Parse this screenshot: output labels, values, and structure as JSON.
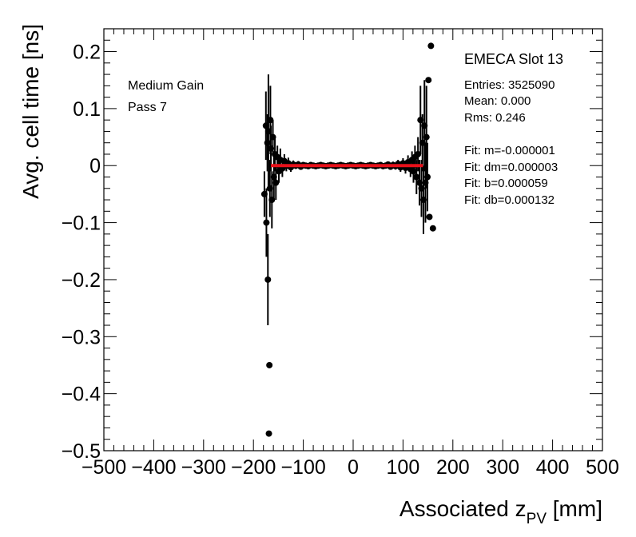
{
  "chart_data": {
    "type": "scatter",
    "xlabel_main": "Associated z",
    "xlabel_sub": "PV",
    "xlabel_unit": " [mm]",
    "ylabel": "Avg. cell time [ns]",
    "xlim": [
      -500,
      500
    ],
    "ylim": [
      -0.5,
      0.24
    ],
    "xticks": [
      -500,
      -400,
      -300,
      -200,
      -100,
      0,
      100,
      200,
      300,
      400,
      500
    ],
    "yticks": [
      0.2,
      0.1,
      0,
      -0.1,
      -0.2,
      -0.3,
      -0.4,
      -0.5
    ],
    "xtick_labels": [
      "−500",
      "−400",
      "−300",
      "−200",
      "−100",
      "0",
      "100",
      "200",
      "300",
      "400",
      "500"
    ],
    "ytick_labels": [
      "0.2",
      "0.1",
      "0",
      "−0.1",
      "−0.2",
      "−0.3",
      "−0.4",
      "−0.5"
    ],
    "grid": false,
    "annotations": [
      "Medium Gain",
      "Pass 7"
    ],
    "stats_box": {
      "title": "EMECA Slot 13",
      "lines": [
        "Entries: 3525090",
        "Mean: 0.000",
        "Rms: 0.246",
        "",
        "Fit: m=-0.000001",
        "Fit: dm=0.000003",
        "Fit: b=0.000059",
        "Fit: db=0.000132"
      ]
    },
    "fit_line": {
      "x": [
        -165,
        140
      ],
      "y": [
        0.0,
        0.0
      ],
      "color": "#e8101a"
    },
    "marker_color": "#000000",
    "points": [
      {
        "x": -178,
        "y": -0.05,
        "err": 0.04
      },
      {
        "x": -175,
        "y": 0.07,
        "err": 0.06
      },
      {
        "x": -174,
        "y": -0.1,
        "err": 0.06
      },
      {
        "x": -172,
        "y": 0.04,
        "err": 0.05
      },
      {
        "x": -171,
        "y": -0.2,
        "err": 0.08
      },
      {
        "x": -170,
        "y": 0.06,
        "err": 0.1
      },
      {
        "x": -169,
        "y": -0.47,
        "err": 0.0
      },
      {
        "x": -168,
        "y": -0.35,
        "err": 0.0
      },
      {
        "x": -167,
        "y": -0.04,
        "err": 0.05
      },
      {
        "x": -166,
        "y": 0.08,
        "err": 0.06
      },
      {
        "x": -165,
        "y": 0.03,
        "err": 0.04
      },
      {
        "x": -163,
        "y": -0.06,
        "err": 0.05
      },
      {
        "x": -161,
        "y": 0.05,
        "err": 0.03
      },
      {
        "x": -159,
        "y": -0.02,
        "err": 0.04
      },
      {
        "x": -157,
        "y": 0.02,
        "err": 0.03
      },
      {
        "x": -155,
        "y": -0.03,
        "err": 0.03
      },
      {
        "x": -152,
        "y": 0.015,
        "err": 0.02
      },
      {
        "x": -149,
        "y": -0.01,
        "err": 0.02
      },
      {
        "x": -146,
        "y": 0.01,
        "err": 0.02
      },
      {
        "x": -142,
        "y": -0.005,
        "err": 0.015
      },
      {
        "x": -138,
        "y": 0.008,
        "err": 0.012
      },
      {
        "x": -134,
        "y": 0.0,
        "err": 0.01
      },
      {
        "x": -130,
        "y": 0.004,
        "err": 0.01
      },
      {
        "x": -125,
        "y": -0.003,
        "err": 0.008
      },
      {
        "x": -120,
        "y": 0.002,
        "err": 0.007
      },
      {
        "x": -115,
        "y": 0.0,
        "err": 0.006
      },
      {
        "x": -110,
        "y": 0.002,
        "err": 0.006
      },
      {
        "x": -105,
        "y": -0.002,
        "err": 0.005
      },
      {
        "x": -100,
        "y": 0.001,
        "err": 0.005
      },
      {
        "x": -95,
        "y": 0.0,
        "err": 0.005
      },
      {
        "x": -90,
        "y": -0.001,
        "err": 0.004
      },
      {
        "x": -85,
        "y": 0.001,
        "err": 0.004
      },
      {
        "x": -80,
        "y": 0.0,
        "err": 0.004
      },
      {
        "x": -75,
        "y": -0.001,
        "err": 0.004
      },
      {
        "x": -70,
        "y": 0.0,
        "err": 0.004
      },
      {
        "x": -65,
        "y": 0.001,
        "err": 0.003
      },
      {
        "x": -60,
        "y": 0.0,
        "err": 0.003
      },
      {
        "x": -55,
        "y": -0.001,
        "err": 0.003
      },
      {
        "x": -50,
        "y": 0.0,
        "err": 0.003
      },
      {
        "x": -45,
        "y": 0.001,
        "err": 0.003
      },
      {
        "x": -40,
        "y": 0.0,
        "err": 0.003
      },
      {
        "x": -35,
        "y": -0.001,
        "err": 0.003
      },
      {
        "x": -30,
        "y": 0.0,
        "err": 0.003
      },
      {
        "x": -25,
        "y": 0.001,
        "err": 0.003
      },
      {
        "x": -20,
        "y": 0.0,
        "err": 0.003
      },
      {
        "x": -15,
        "y": -0.001,
        "err": 0.003
      },
      {
        "x": -10,
        "y": 0.0,
        "err": 0.003
      },
      {
        "x": -5,
        "y": 0.001,
        "err": 0.003
      },
      {
        "x": 0,
        "y": 0.0,
        "err": 0.003
      },
      {
        "x": 5,
        "y": -0.001,
        "err": 0.003
      },
      {
        "x": 10,
        "y": 0.0,
        "err": 0.003
      },
      {
        "x": 15,
        "y": 0.001,
        "err": 0.003
      },
      {
        "x": 20,
        "y": 0.0,
        "err": 0.003
      },
      {
        "x": 25,
        "y": -0.001,
        "err": 0.003
      },
      {
        "x": 30,
        "y": 0.0,
        "err": 0.003
      },
      {
        "x": 35,
        "y": 0.001,
        "err": 0.003
      },
      {
        "x": 40,
        "y": 0.0,
        "err": 0.003
      },
      {
        "x": 45,
        "y": -0.001,
        "err": 0.003
      },
      {
        "x": 50,
        "y": 0.0,
        "err": 0.004
      },
      {
        "x": 55,
        "y": 0.001,
        "err": 0.004
      },
      {
        "x": 60,
        "y": -0.001,
        "err": 0.004
      },
      {
        "x": 65,
        "y": 0.0,
        "err": 0.004
      },
      {
        "x": 70,
        "y": 0.002,
        "err": 0.005
      },
      {
        "x": 75,
        "y": -0.002,
        "err": 0.005
      },
      {
        "x": 80,
        "y": 0.001,
        "err": 0.006
      },
      {
        "x": 85,
        "y": -0.001,
        "err": 0.006
      },
      {
        "x": 90,
        "y": 0.003,
        "err": 0.007
      },
      {
        "x": 95,
        "y": -0.003,
        "err": 0.008
      },
      {
        "x": 100,
        "y": 0.004,
        "err": 0.009
      },
      {
        "x": 105,
        "y": -0.004,
        "err": 0.01
      },
      {
        "x": 110,
        "y": 0.006,
        "err": 0.012
      },
      {
        "x": 115,
        "y": -0.006,
        "err": 0.014
      },
      {
        "x": 118,
        "y": 0.01,
        "err": 0.015
      },
      {
        "x": 121,
        "y": -0.01,
        "err": 0.02
      },
      {
        "x": 124,
        "y": 0.015,
        "err": 0.02
      },
      {
        "x": 127,
        "y": -0.02,
        "err": 0.03
      },
      {
        "x": 130,
        "y": 0.02,
        "err": 0.03
      },
      {
        "x": 133,
        "y": -0.03,
        "err": 0.04
      },
      {
        "x": 135,
        "y": 0.08,
        "err": 0.06
      },
      {
        "x": 137,
        "y": -0.04,
        "err": 0.05
      },
      {
        "x": 139,
        "y": 0.04,
        "err": 0.05
      },
      {
        "x": 141,
        "y": -0.06,
        "err": 0.06
      },
      {
        "x": 143,
        "y": 0.07,
        "err": 0.08
      },
      {
        "x": 145,
        "y": -0.03,
        "err": 0.07
      },
      {
        "x": 147,
        "y": 0.05,
        "err": 0.09
      },
      {
        "x": 149,
        "y": -0.02,
        "err": 0.06
      },
      {
        "x": 151,
        "y": 0.15,
        "err": 0.0
      },
      {
        "x": 153,
        "y": -0.09,
        "err": 0.0
      },
      {
        "x": 156,
        "y": 0.21,
        "err": 0.0
      },
      {
        "x": 160,
        "y": -0.11,
        "err": 0.0
      }
    ]
  }
}
